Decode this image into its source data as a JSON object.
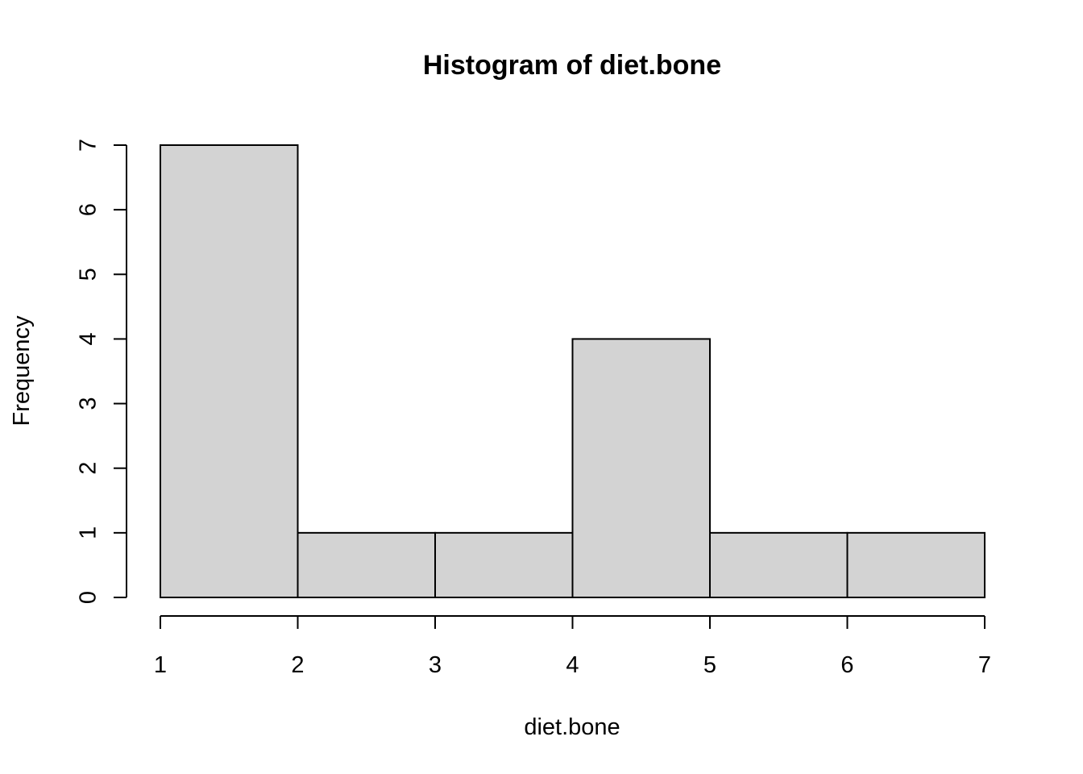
{
  "chart_data": {
    "type": "bar",
    "title": "Histogram of diet.bone",
    "xlabel": "diet.bone",
    "ylabel": "Frequency",
    "bins": [
      [
        1,
        2
      ],
      [
        2,
        3
      ],
      [
        3,
        4
      ],
      [
        4,
        5
      ],
      [
        5,
        6
      ],
      [
        6,
        7
      ]
    ],
    "values": [
      7,
      1,
      1,
      4,
      1,
      1
    ],
    "xlim": [
      1,
      7
    ],
    "ylim": [
      0,
      7
    ],
    "x_ticks": [
      1,
      2,
      3,
      4,
      5,
      6,
      7
    ],
    "y_ticks": [
      0,
      1,
      2,
      3,
      4,
      5,
      6,
      7
    ],
    "bar_color": "#d3d3d3",
    "grid": false,
    "legend": "none"
  }
}
